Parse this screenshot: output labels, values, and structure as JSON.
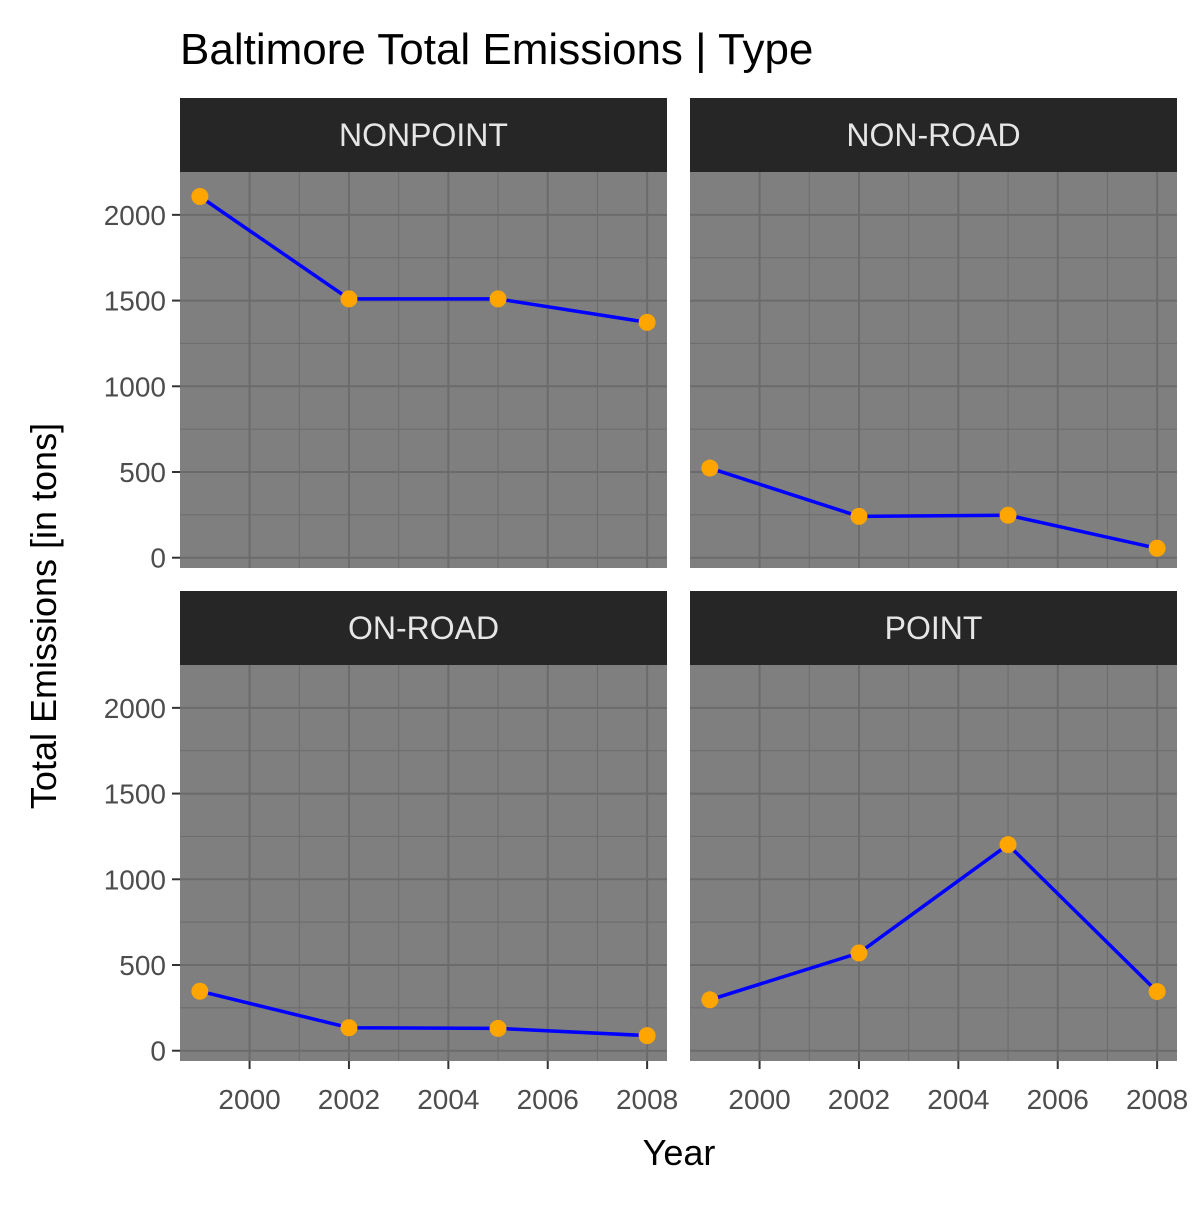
{
  "chart_data": {
    "type": "line",
    "title": "Baltimore Total Emissions | Type",
    "xlabel": "Year",
    "ylabel": "Total Emissions [in tons]",
    "x": [
      1999,
      2002,
      2005,
      2008
    ],
    "xlim": [
      1998.6,
      2008.4
    ],
    "ylim": [
      -60,
      2250
    ],
    "x_ticks": [
      2000,
      2002,
      2004,
      2006,
      2008
    ],
    "y_ticks": [
      0,
      500,
      1000,
      1500,
      2000
    ],
    "grid": true,
    "panel_background": "#7f7f7f",
    "grid_color": "#6b6b6b",
    "strip_background": "#262626",
    "line_color": "#0000ff",
    "point_color": "#ffa500",
    "panels": [
      {
        "name": "NONPOINT",
        "values": [
          2107,
          1510,
          1510,
          1373
        ]
      },
      {
        "name": "NON-ROAD",
        "values": [
          523,
          241,
          248,
          55
        ]
      },
      {
        "name": "ON-ROAD",
        "values": [
          347,
          134,
          130,
          88
        ]
      },
      {
        "name": "POINT",
        "values": [
          297,
          570,
          1202,
          345
        ]
      }
    ]
  }
}
